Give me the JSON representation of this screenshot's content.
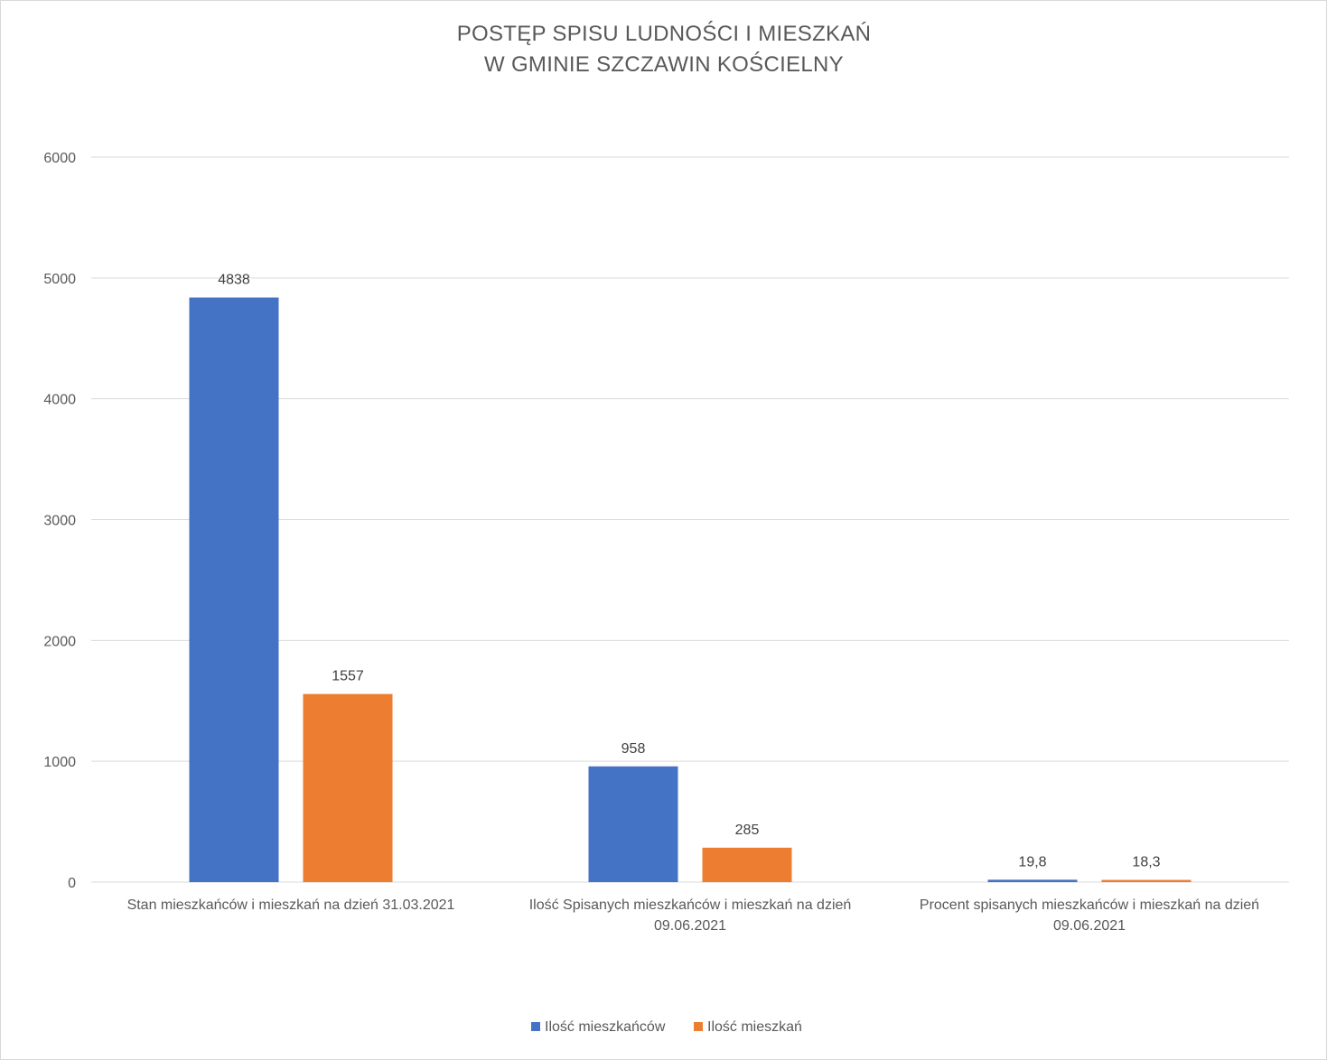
{
  "chart_data": {
    "type": "bar",
    "title": [
      "POSTĘP SPISU LUDNOŚCI I MIESZKAŃ",
      "W GMINIE SZCZAWIN KOŚCIELNY"
    ],
    "categories": [
      [
        "Stan mieszkańców i mieszkań na dzień 31.03.2021"
      ],
      [
        "Ilość Spisanych mieszkańców i mieszkań na dzień",
        "09.06.2021"
      ],
      [
        "Procent spisanych  mieszkańców i mieszkań na dzień",
        "09.06.2021"
      ]
    ],
    "series": [
      {
        "name": "Ilość mieszkańców",
        "color": "#4472c4",
        "values": [
          4838,
          958,
          19.8
        ],
        "labels": [
          "4838",
          "958",
          "19,8"
        ]
      },
      {
        "name": "Ilość mieszkań",
        "color": "#ed7d31",
        "values": [
          1557,
          285,
          18.3
        ],
        "labels": [
          "1557",
          "285",
          "18,3"
        ]
      }
    ],
    "ylim": [
      0,
      6000
    ],
    "yticks": [
      0,
      1000,
      2000,
      3000,
      4000,
      5000,
      6000
    ],
    "grid": true,
    "legend_position": "bottom"
  }
}
